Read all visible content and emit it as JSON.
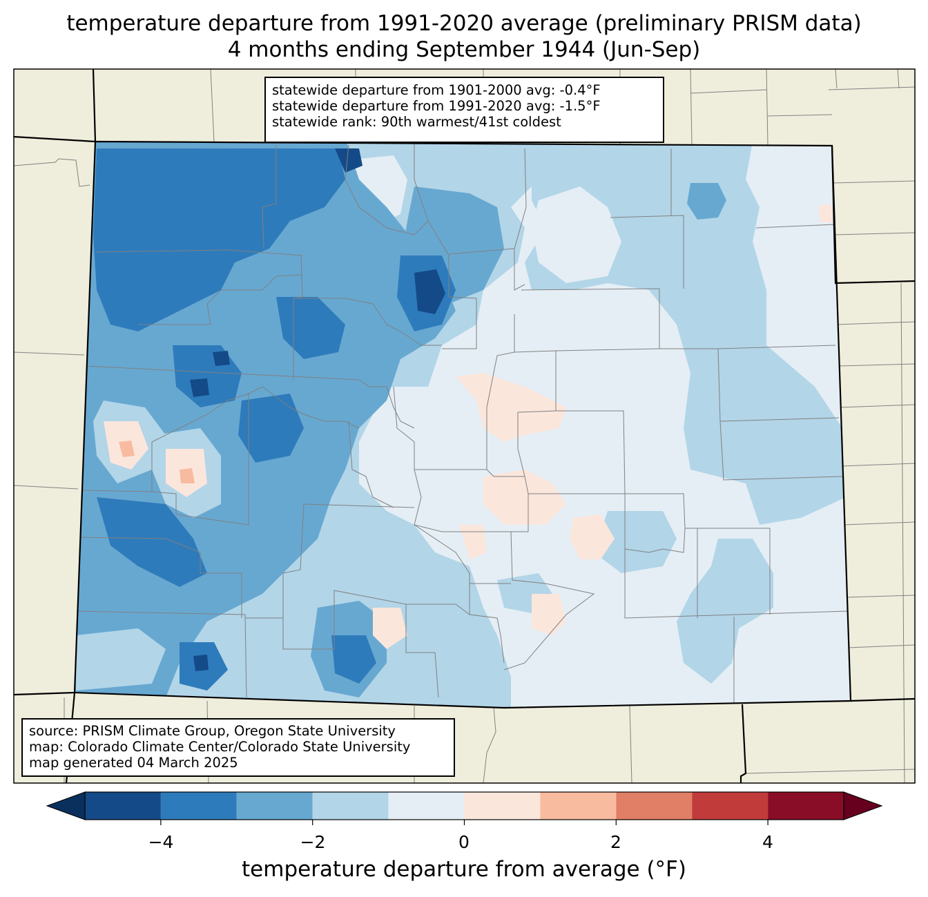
{
  "title": {
    "line1": "temperature departure from 1991-2020 average (preliminary PRISM data)",
    "line2": "4 months ending September 1944 (Jun-Sep)"
  },
  "stats_box": {
    "line1": "statewide departure from 1901-2000 avg: -0.4°F",
    "line2": "statewide departure from 1991-2020 avg: -1.5°F",
    "line3": "statewide rank: 90th warmest/41st coldest"
  },
  "source_box": {
    "line1": "source: PRISM Climate Group, Oregon State University",
    "line2": "map: Colorado Climate Center/Colorado State University",
    "line3": "map generated 04 March 2025"
  },
  "colorbar": {
    "label": "temperature departure from average (°F)",
    "ticks": [
      "−4",
      "−2",
      "0",
      "2",
      "4"
    ],
    "bins": [
      {
        "from": -5,
        "to": -4,
        "color": "#144a87"
      },
      {
        "from": -4,
        "to": -3,
        "color": "#2e7bbb"
      },
      {
        "from": -3,
        "to": -2,
        "color": "#67a8d1"
      },
      {
        "from": -2,
        "to": -1,
        "color": "#b2d5e8"
      },
      {
        "from": -1,
        "to": 0,
        "color": "#e5eef5"
      },
      {
        "from": 0,
        "to": 1,
        "color": "#fbe6dc"
      },
      {
        "from": 1,
        "to": 2,
        "color": "#f8bba0"
      },
      {
        "from": 2,
        "to": 3,
        "color": "#e07f66"
      },
      {
        "from": 3,
        "to": 4,
        "color": "#c23b3b"
      },
      {
        "from": 4,
        "to": 5,
        "color": "#890d26"
      }
    ],
    "under_color": "#0a305e",
    "over_color": "#67001f"
  },
  "colors": {
    "land": "#efeedc",
    "state_border": "#000000",
    "county_border": "#808080"
  }
}
